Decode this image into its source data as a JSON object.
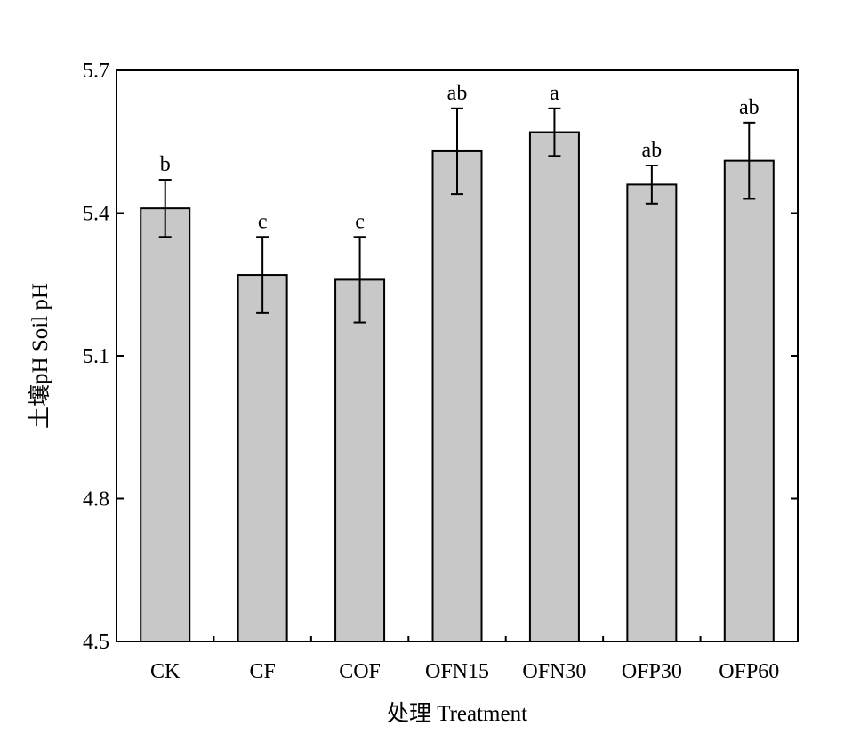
{
  "chart_data": {
    "type": "bar",
    "title": "",
    "xlabel": "处理 Treatment",
    "ylabel": "土壤pH Soil pH",
    "ylim": [
      4.5,
      5.7
    ],
    "yticks": [
      "4.5",
      "4.8",
      "5.1",
      "5.4",
      "5.7"
    ],
    "categories": [
      "CK",
      "CF",
      "COF",
      "OFN15",
      "OFN30",
      "OFP30",
      "OFP60"
    ],
    "series": [
      {
        "values": [
          5.41,
          5.27,
          5.26,
          5.53,
          5.57,
          5.46,
          5.51
        ],
        "errors": [
          0.06,
          0.08,
          0.09,
          0.09,
          0.05,
          0.04,
          0.08
        ]
      }
    ],
    "significance_labels": [
      "b",
      "c",
      "c",
      "ab",
      "a",
      "ab",
      "ab"
    ],
    "colors": {
      "bar_fill": "#c8c8c8",
      "bar_stroke": "#000000",
      "axis": "#000000"
    },
    "grid": false,
    "legend": "none"
  }
}
